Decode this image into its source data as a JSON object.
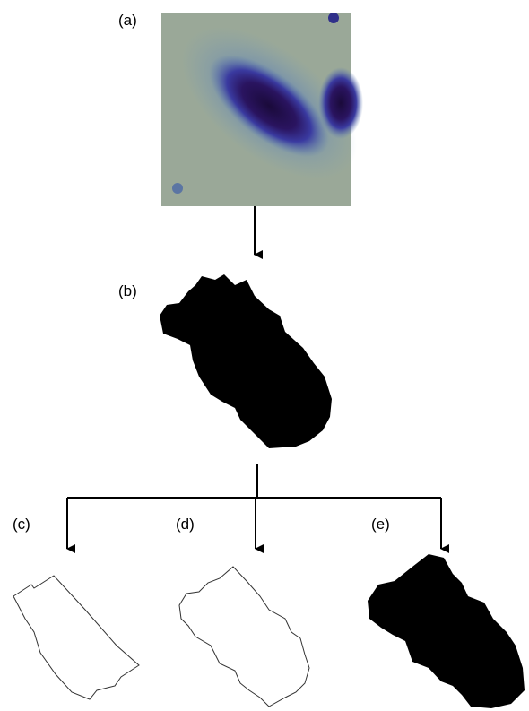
{
  "labels": {
    "a": "(a)",
    "b": "(b)",
    "c": "(c)",
    "d": "(d)",
    "e": "(e)"
  }
}
